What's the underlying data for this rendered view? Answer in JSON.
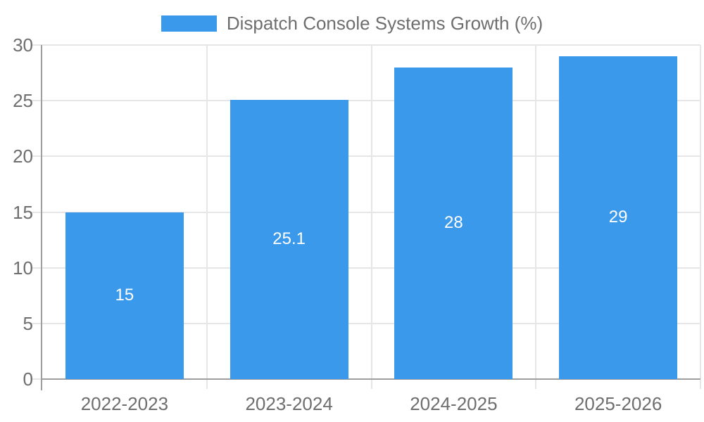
{
  "legend": {
    "label": "Dispatch Console Systems Growth (%)"
  },
  "chart_data": {
    "type": "bar",
    "title": "Dispatch Console Systems Growth (%)",
    "categories": [
      "2022-2023",
      "2023-2024",
      "2024-2025",
      "2025-2026"
    ],
    "series": [
      {
        "name": "Dispatch Console Systems Growth (%)",
        "values": [
          15,
          25.1,
          28,
          29
        ]
      }
    ],
    "values": [
      15,
      25.1,
      28,
      29
    ],
    "value_labels": [
      "15",
      "25.1",
      "28",
      "29"
    ],
    "xlabel": "",
    "ylabel": "",
    "ylim": [
      0,
      30
    ],
    "yticks": [
      0,
      5,
      10,
      15,
      20,
      25,
      30
    ],
    "grid": true,
    "legend_position": "top-center",
    "value_label_position": "center-of-bar"
  },
  "colors": {
    "bar": "#3a99ea",
    "grid": "#e6e6e6",
    "axis": "#9e9e9e",
    "tick_text": "#6e6e6e",
    "value_label_text": "#ffffff",
    "background": "#ffffff"
  }
}
